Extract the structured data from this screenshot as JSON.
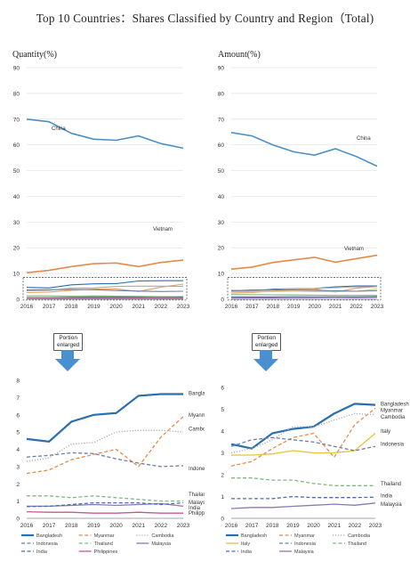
{
  "title": "Top 10 Countries：Shares Classified by Country and Region（Total)",
  "enlarged_label_1": "Portion",
  "enlarged_label_2": "enlarged",
  "chart_data": [
    {
      "id": "qty-main",
      "type": "line",
      "ylabel": "Quantity(%)",
      "x": [
        2016,
        2017,
        2018,
        2019,
        2020,
        2021,
        2022,
        2023
      ],
      "ylim": [
        0,
        90
      ],
      "yticks": [
        0,
        10,
        20,
        30,
        40,
        50,
        60,
        70,
        80,
        90
      ],
      "grid": true,
      "series": [
        {
          "name": "China",
          "color": "#4a90c8",
          "values": [
            70,
            69,
            64.5,
            62.2,
            61.8,
            63.5,
            60.5,
            58.7
          ]
        },
        {
          "name": "Vietnam",
          "color": "#e8894a",
          "values": [
            10.3,
            11.2,
            12.7,
            13.8,
            14.1,
            12.7,
            14.3,
            15.2
          ]
        },
        {
          "name": "",
          "color": "#2a6fb0",
          "values": [
            4.6,
            4.4,
            5.6,
            6.0,
            6.1,
            7.1,
            7.2,
            7.2
          ]
        },
        {
          "name": "",
          "color": "#e8a060",
          "values": [
            2.6,
            2.8,
            3.5,
            3.9,
            4.0,
            3.0,
            4.7,
            5.9
          ]
        },
        {
          "name": "",
          "color": "#aaaaaa",
          "values": [
            3.3,
            3.5,
            4.3,
            4.4,
            5.0,
            5.1,
            5.1,
            5.0
          ]
        },
        {
          "name": "",
          "color": "#6b7fa8",
          "values": [
            3.6,
            3.7,
            3.8,
            3.7,
            3.4,
            3.2,
            3.0,
            3.1
          ]
        },
        {
          "name": "",
          "color": "#7fb87f",
          "values": [
            1.3,
            1.3,
            1.2,
            1.3,
            1.2,
            1.1,
            1.0,
            1.0
          ]
        },
        {
          "name": "",
          "color": "#4a6ea8",
          "values": [
            0.7,
            0.7,
            0.8,
            0.9,
            0.9,
            0.9,
            0.8,
            0.9
          ]
        },
        {
          "name": "",
          "color": "#8a7ab8",
          "values": [
            0.7,
            0.7,
            0.7,
            0.7,
            0.7,
            0.7,
            0.8,
            0.7
          ]
        },
        {
          "name": "",
          "color": "#c85a8a",
          "values": [
            0.4,
            0.35,
            0.35,
            0.3,
            0.3,
            0.35,
            0.3,
            0.3
          ]
        }
      ],
      "labels": [
        "China",
        "Vietnam"
      ]
    },
    {
      "id": "amt-main",
      "type": "line",
      "ylabel": "Amount(%)",
      "x": [
        2016,
        2017,
        2018,
        2019,
        2020,
        2021,
        2022,
        2023
      ],
      "ylim": [
        0,
        90
      ],
      "yticks": [
        0,
        10,
        20,
        30,
        40,
        50,
        60,
        70,
        80,
        90
      ],
      "grid": true,
      "series": [
        {
          "name": "China",
          "color": "#4a90c8",
          "values": [
            64.8,
            63.5,
            60.0,
            57.3,
            56.0,
            58.5,
            55.5,
            51.7
          ]
        },
        {
          "name": "Vietnam",
          "color": "#e8894a",
          "values": [
            11.7,
            12.5,
            14.3,
            15.3,
            16.3,
            14.4,
            15.8,
            17.1
          ]
        },
        {
          "name": "",
          "color": "#2a6fb0",
          "values": [
            3.4,
            3.2,
            3.9,
            4.1,
            4.2,
            4.8,
            5.2,
            5.2
          ]
        },
        {
          "name": "",
          "color": "#e8a060",
          "values": [
            2.4,
            2.6,
            3.2,
            3.7,
            3.9,
            2.8,
            4.3,
            5.0
          ]
        },
        {
          "name": "",
          "color": "#aaaaaa",
          "values": [
            3.0,
            3.2,
            3.6,
            4.2,
            4.2,
            4.5,
            4.8,
            4.8
          ]
        },
        {
          "name": "",
          "color": "#e8c040",
          "values": [
            2.9,
            2.9,
            3.0,
            3.1,
            3.0,
            3.0,
            3.1,
            3.9
          ]
        },
        {
          "name": "",
          "color": "#6b7fa8",
          "values": [
            3.3,
            3.6,
            3.7,
            3.6,
            3.5,
            3.3,
            3.1,
            3.3
          ]
        },
        {
          "name": "",
          "color": "#7fb87f",
          "values": [
            1.8,
            1.8,
            1.7,
            1.7,
            1.6,
            1.5,
            1.5,
            1.5
          ]
        },
        {
          "name": "",
          "color": "#4a6ea8",
          "values": [
            0.9,
            0.9,
            0.9,
            1.0,
            0.95,
            0.95,
            0.95,
            1.0
          ]
        },
        {
          "name": "",
          "color": "#8a7ab8",
          "values": [
            0.45,
            0.5,
            0.5,
            0.55,
            0.6,
            0.65,
            0.6,
            0.7
          ]
        }
      ],
      "labels": [
        "China",
        "Vietnam"
      ]
    },
    {
      "id": "qty-zoom",
      "type": "line",
      "x": [
        2016,
        2017,
        2018,
        2019,
        2020,
        2021,
        2022,
        2023
      ],
      "ylim": [
        0,
        8
      ],
      "yticks": [
        0,
        1,
        2,
        3,
        4,
        5,
        6,
        7,
        8
      ],
      "grid": false,
      "series": [
        {
          "name": "Bangladesh",
          "color": "#2a6fb0",
          "dash": "solid",
          "width": 2.2,
          "values": [
            4.6,
            4.45,
            5.6,
            6.0,
            6.1,
            7.1,
            7.2,
            7.2
          ]
        },
        {
          "name": "Myanmar",
          "color": "#e8894a",
          "dash": "dash",
          "width": 1.3,
          "values": [
            2.6,
            2.8,
            3.4,
            3.7,
            4.0,
            3.0,
            4.7,
            5.9
          ]
        },
        {
          "name": "Cambodia",
          "color": "#aaaaaa",
          "dash": "dot",
          "width": 1.3,
          "values": [
            3.3,
            3.5,
            4.3,
            4.4,
            5.0,
            5.1,
            5.1,
            5.0
          ]
        },
        {
          "name": "Indonesia",
          "color": "#6b7fa8",
          "dash": "dash",
          "width": 1.3,
          "values": [
            3.55,
            3.65,
            3.8,
            3.75,
            3.45,
            3.2,
            3.0,
            3.05
          ]
        },
        {
          "name": "Thailand",
          "color": "#7fb87f",
          "dash": "dash",
          "width": 1.3,
          "values": [
            1.3,
            1.3,
            1.2,
            1.3,
            1.2,
            1.1,
            1.0,
            1.0
          ]
        },
        {
          "name": "Malaysia",
          "color": "#8a7ab8",
          "dash": "solid",
          "width": 1.3,
          "values": [
            0.7,
            0.7,
            0.75,
            0.8,
            0.75,
            0.8,
            0.85,
            0.7
          ]
        },
        {
          "name": "India",
          "color": "#4a6ea8",
          "dash": "dash",
          "width": 1.3,
          "values": [
            0.68,
            0.7,
            0.8,
            0.9,
            0.9,
            0.9,
            0.8,
            0.9
          ]
        },
        {
          "name": "Philippines",
          "color": "#c85a8a",
          "dash": "solid",
          "width": 1.3,
          "values": [
            0.38,
            0.35,
            0.35,
            0.3,
            0.3,
            0.35,
            0.3,
            0.3
          ]
        }
      ],
      "labels": [
        "Bangladesh",
        "Myanmar",
        "Cambodia",
        "Indonesia",
        "Thailand",
        "Malaysia",
        "India",
        "Philippines"
      ],
      "legend": [
        "Bangladesh",
        "Myanmar",
        "Cambodia",
        "Indonesia",
        "Thailand",
        "Malaysia",
        "India",
        "Philippines"
      ]
    },
    {
      "id": "amt-zoom",
      "type": "line",
      "x": [
        2016,
        2017,
        2018,
        2019,
        2020,
        2021,
        2022,
        2023
      ],
      "ylim": [
        0,
        6
      ],
      "yticks": [
        0,
        1,
        2,
        3,
        4,
        5,
        6
      ],
      "grid": false,
      "series": [
        {
          "name": "Bangladesh",
          "color": "#2a6fb0",
          "dash": "solid",
          "width": 2.2,
          "values": [
            3.4,
            3.2,
            3.9,
            4.1,
            4.2,
            4.8,
            5.25,
            5.2
          ]
        },
        {
          "name": "Myanmar",
          "color": "#e8894a",
          "dash": "dash",
          "width": 1.3,
          "values": [
            2.4,
            2.6,
            3.2,
            3.7,
            3.9,
            2.8,
            4.3,
            5.05
          ]
        },
        {
          "name": "Cambodia",
          "color": "#aaaaaa",
          "dash": "dot",
          "width": 1.3,
          "values": [
            3.0,
            3.2,
            3.6,
            4.2,
            4.2,
            4.5,
            4.8,
            4.75
          ]
        },
        {
          "name": "Italy",
          "color": "#e8c040",
          "dash": "solid",
          "width": 1.3,
          "values": [
            2.9,
            2.9,
            2.95,
            3.1,
            3.0,
            3.0,
            3.1,
            3.9
          ]
        },
        {
          "name": "Indonesia",
          "color": "#6b7fa8",
          "dash": "dash",
          "width": 1.3,
          "values": [
            3.3,
            3.6,
            3.7,
            3.6,
            3.5,
            3.3,
            3.1,
            3.3
          ]
        },
        {
          "name": "Thailand",
          "color": "#7fb87f",
          "dash": "dash",
          "width": 1.3,
          "values": [
            1.85,
            1.85,
            1.75,
            1.75,
            1.6,
            1.5,
            1.5,
            1.5
          ]
        },
        {
          "name": "India",
          "color": "#4a6ea8",
          "dash": "dash",
          "width": 1.3,
          "values": [
            0.9,
            0.9,
            0.9,
            1.0,
            0.95,
            0.95,
            0.95,
            0.97
          ]
        },
        {
          "name": "Malaysia",
          "color": "#8a7ab8",
          "dash": "solid",
          "width": 1.3,
          "values": [
            0.45,
            0.5,
            0.5,
            0.55,
            0.6,
            0.65,
            0.6,
            0.7
          ]
        }
      ],
      "labels": [
        "Bangladesh",
        "Myanmar",
        "Cambodia",
        "Italy",
        "Indonesia",
        "Thailand",
        "India",
        "Malaysia"
      ],
      "legend": [
        "Bangladesh",
        "Myanmar",
        "Cambodia",
        "Italy",
        "Indonesia",
        "Thailand",
        "India",
        "Malaysia"
      ]
    }
  ]
}
